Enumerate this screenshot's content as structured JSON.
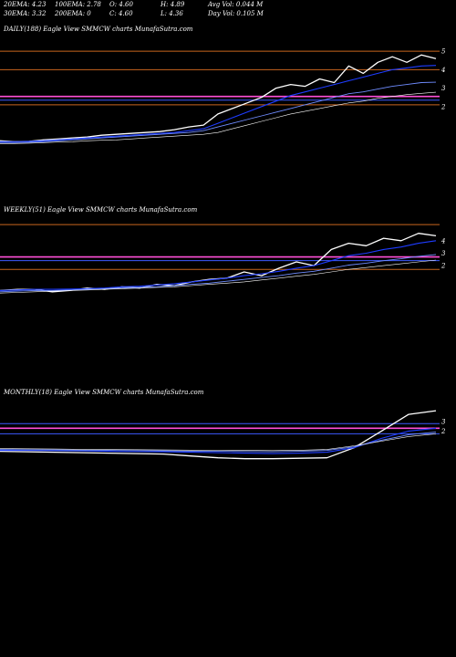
{
  "header": {
    "ema20": "20EMA: 4.23",
    "ema100": "100EMA: 2.78",
    "open": "O: 4.60",
    "high": "H: 4.89",
    "avg_vol": "Avg Vol: 0.044  M",
    "ema30": "30EMA: 3.32",
    "ema200": "200EMA: 0",
    "close": "C: 4.60",
    "low": "L: 4.36",
    "day_vol": "Day Vol: 0.105 M"
  },
  "colors": {
    "background": "#000000",
    "price": "#ffffff",
    "ema_short": "#1e3cff",
    "ema_mid": "#6f8cff",
    "ema_long": "#ffffff",
    "level_orange": "#c8651e",
    "level_pink": "#ff4fd8",
    "level_blue": "#3c5aff"
  },
  "chart_data": [
    {
      "type": "line",
      "title": "DAILY(188) Eagle   View  SMMCW charts MunafaSutra.com",
      "y_tick_labels": [
        "5",
        "4",
        "3",
        "2"
      ],
      "y_ticks": [
        5,
        4,
        3,
        2
      ],
      "ylim": [
        -2.9,
        5.6
      ],
      "levels": [
        {
          "value": 5.0,
          "color": "#c8651e"
        },
        {
          "value": 4.0,
          "color": "#c8651e"
        },
        {
          "value": 2.55,
          "color": "#ff4fd8"
        },
        {
          "value": 2.1,
          "color": "#c8651e"
        },
        {
          "value": 2.35,
          "color": "#3c5aff"
        }
      ],
      "series": [
        {
          "key": "price",
          "values": [
            0.15,
            0.1,
            0.12,
            0.2,
            0.25,
            0.3,
            0.35,
            0.45,
            0.5,
            0.55,
            0.6,
            0.65,
            0.75,
            0.9,
            1.0,
            1.6,
            1.9,
            2.2,
            2.5,
            3.0,
            3.2,
            3.1,
            3.5,
            3.3,
            4.2,
            3.8,
            4.4,
            4.7,
            4.4,
            4.8,
            4.6
          ]
        },
        {
          "key": "ema_short",
          "values": [
            0.1,
            0.1,
            0.12,
            0.15,
            0.2,
            0.25,
            0.3,
            0.35,
            0.4,
            0.45,
            0.5,
            0.55,
            0.6,
            0.7,
            0.8,
            1.1,
            1.4,
            1.7,
            2.0,
            2.3,
            2.6,
            2.8,
            3.0,
            3.2,
            3.4,
            3.6,
            3.8,
            4.0,
            4.1,
            4.2,
            4.23
          ]
        },
        {
          "key": "ema_mid",
          "values": [
            0.05,
            0.05,
            0.07,
            0.1,
            0.15,
            0.2,
            0.25,
            0.3,
            0.35,
            0.4,
            0.45,
            0.5,
            0.55,
            0.6,
            0.7,
            0.9,
            1.1,
            1.3,
            1.5,
            1.7,
            1.9,
            2.1,
            2.3,
            2.5,
            2.7,
            2.8,
            2.95,
            3.1,
            3.2,
            3.3,
            3.32
          ]
        },
        {
          "key": "ema_long",
          "values": [
            0.0,
            0.0,
            0.02,
            0.05,
            0.08,
            0.1,
            0.15,
            0.18,
            0.2,
            0.25,
            0.3,
            0.35,
            0.4,
            0.45,
            0.5,
            0.6,
            0.8,
            1.0,
            1.2,
            1.4,
            1.6,
            1.75,
            1.9,
            2.05,
            2.2,
            2.3,
            2.45,
            2.55,
            2.65,
            2.72,
            2.78
          ]
        }
      ]
    },
    {
      "type": "line",
      "title": "WEEKLY(51) Eagle   View  SMMCW charts MunafaSutra.com",
      "y_tick_labels": [
        "4",
        "3",
        "2"
      ],
      "y_ticks": [
        4,
        3,
        2
      ],
      "ylim": [
        -7.0,
        5.6
      ],
      "levels": [
        {
          "value": 5.3,
          "color": "#c8651e"
        },
        {
          "value": 2.7,
          "color": "#ff4fd8"
        },
        {
          "value": 2.4,
          "color": "#3c5aff"
        },
        {
          "value": 1.7,
          "color": "#c8651e"
        }
      ],
      "series": [
        {
          "key": "price",
          "values": [
            0.0,
            0.1,
            0.1,
            -0.1,
            0.0,
            0.2,
            0.1,
            0.3,
            0.2,
            0.5,
            0.4,
            0.7,
            0.9,
            1.0,
            1.5,
            1.2,
            1.8,
            2.3,
            2.0,
            3.3,
            3.8,
            3.6,
            4.2,
            4.0,
            4.6,
            4.4
          ]
        },
        {
          "key": "ema_short",
          "values": [
            0.0,
            0.05,
            0.1,
            0.1,
            0.12,
            0.15,
            0.2,
            0.3,
            0.35,
            0.45,
            0.55,
            0.7,
            0.85,
            1.0,
            1.2,
            1.35,
            1.55,
            1.8,
            2.0,
            2.4,
            2.8,
            3.0,
            3.3,
            3.5,
            3.8,
            4.0
          ]
        },
        {
          "key": "ema_mid",
          "values": [
            -0.1,
            -0.05,
            0.0,
            0.0,
            0.05,
            0.1,
            0.15,
            0.2,
            0.25,
            0.3,
            0.4,
            0.5,
            0.6,
            0.75,
            0.9,
            1.05,
            1.2,
            1.4,
            1.55,
            1.8,
            2.05,
            2.2,
            2.4,
            2.55,
            2.75,
            2.9
          ]
        },
        {
          "key": "ema_long",
          "values": [
            -0.2,
            -0.15,
            -0.1,
            -0.05,
            0.0,
            0.05,
            0.1,
            0.15,
            0.2,
            0.25,
            0.3,
            0.4,
            0.5,
            0.6,
            0.7,
            0.85,
            1.0,
            1.15,
            1.3,
            1.5,
            1.7,
            1.85,
            2.0,
            2.15,
            2.3,
            2.45
          ]
        }
      ]
    },
    {
      "type": "line",
      "title": "MONTHLY(18) Eagle   View  SMMCW charts MunafaSutra.com",
      "y_tick_labels": [
        "3",
        "2"
      ],
      "y_ticks": [
        3,
        2
      ],
      "ylim": [
        -12.0,
        5.0
      ],
      "levels": [
        {
          "value": 2.8,
          "color": "#3c5aff"
        },
        {
          "value": 2.3,
          "color": "#ff4fd8"
        },
        {
          "value": 1.7,
          "color": "#3c5aff"
        }
      ],
      "series": [
        {
          "key": "price",
          "values": [
            -0.2,
            -0.25,
            -0.3,
            -0.35,
            -0.4,
            -0.45,
            -0.5,
            -0.7,
            -0.9,
            -1.0,
            -1.0,
            -0.95,
            -0.9,
            0.2,
            2.0,
            3.8,
            4.2
          ]
        },
        {
          "key": "ema_short",
          "values": [
            -0.1,
            -0.1,
            -0.12,
            -0.15,
            -0.2,
            -0.22,
            -0.25,
            -0.3,
            -0.35,
            -0.4,
            -0.45,
            -0.4,
            -0.3,
            0.2,
            1.2,
            2.0,
            2.3
          ]
        },
        {
          "key": "ema_mid",
          "values": [
            0.0,
            -0.02,
            -0.05,
            -0.08,
            -0.1,
            -0.12,
            -0.15,
            -0.18,
            -0.2,
            -0.22,
            -0.25,
            -0.2,
            -0.1,
            0.3,
            1.0,
            1.6,
            1.9
          ]
        },
        {
          "key": "ema_long",
          "values": [
            0.1,
            0.08,
            0.05,
            0.02,
            0.0,
            -0.02,
            -0.05,
            -0.07,
            -0.09,
            -0.1,
            -0.12,
            -0.08,
            0.0,
            0.4,
            0.9,
            1.4,
            1.7
          ]
        }
      ]
    }
  ]
}
